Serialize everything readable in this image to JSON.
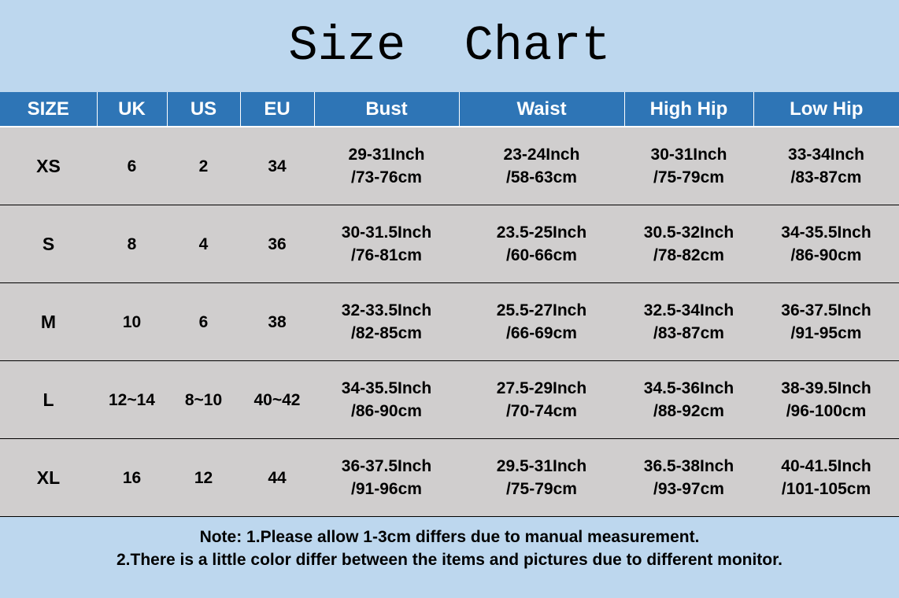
{
  "title": "Size  Chart",
  "colors": {
    "background": "#bdd7ee",
    "header": "#2e75b6",
    "rows": "#d0cece"
  },
  "columns": [
    "SIZE",
    "UK",
    "US",
    "EU",
    "Bust",
    "Waist",
    "High Hip",
    "Low Hip"
  ],
  "rows": [
    [
      "XS",
      "6",
      "2",
      "34",
      "29-31Inch",
      "/73-76cm",
      "23-24Inch",
      "/58-63cm",
      "30-31Inch",
      "/75-79cm",
      "33-34Inch",
      "/83-87cm"
    ],
    [
      "S",
      "8",
      "4",
      "36",
      "30-31.5Inch",
      "/76-81cm",
      "23.5-25Inch",
      "/60-66cm",
      "30.5-32Inch",
      "/78-82cm",
      "34-35.5Inch",
      "/86-90cm"
    ],
    [
      "M",
      "10",
      "6",
      "38",
      "32-33.5Inch",
      "/82-85cm",
      "25.5-27Inch",
      "/66-69cm",
      "32.5-34Inch",
      "/83-87cm",
      "36-37.5Inch",
      "/91-95cm"
    ],
    [
      "L",
      "12~14",
      "8~10",
      "40~42",
      "34-35.5Inch",
      "/86-90cm",
      "27.5-29Inch",
      "/70-74cm",
      "34.5-36Inch",
      "/88-92cm",
      "38-39.5Inch",
      "/96-100cm"
    ],
    [
      "XL",
      "16",
      "12",
      "44",
      "36-37.5Inch",
      "/91-96cm",
      "29.5-31Inch",
      "/75-79cm",
      "36.5-38Inch",
      "/93-97cm",
      "40-41.5Inch",
      "/101-105cm"
    ]
  ],
  "note": {
    "line1": "Note:  1.Please allow 1-3cm differs due to manual measurement.",
    "line2": "2.There is a little color differ between the items and pictures due to different monitor."
  }
}
